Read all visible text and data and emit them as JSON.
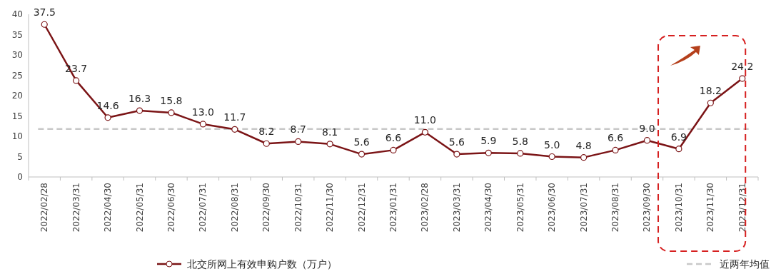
{
  "chart_data": {
    "type": "line",
    "categories": [
      "2022/02/28",
      "2022/03/31",
      "2022/04/30",
      "2022/05/31",
      "2022/06/30",
      "2022/07/31",
      "2022/08/31",
      "2022/09/30",
      "2022/10/31",
      "2022/11/30",
      "2022/12/31",
      "2023/01/31",
      "2023/02/28",
      "2023/03/31",
      "2023/04/30",
      "2023/05/31",
      "2023/06/30",
      "2023/07/31",
      "2023/08/31",
      "2023/09/30",
      "2023/10/31",
      "2023/11/30",
      "2023/12/31"
    ],
    "series": [
      {
        "name": "北交所网上有效申购户数（万户）",
        "color": "#7b1416",
        "values": [
          37.5,
          23.7,
          14.6,
          16.3,
          15.8,
          13.0,
          11.7,
          8.2,
          8.7,
          8.1,
          5.6,
          6.6,
          11.0,
          5.6,
          5.9,
          5.8,
          5.0,
          4.8,
          6.6,
          9.0,
          6.9,
          18.2,
          24.2
        ]
      }
    ],
    "ref_lines": [
      {
        "axis": "y",
        "value": 11.8,
        "label": "近两年均值",
        "color": "#c8c8c8",
        "line_style": "dashed"
      }
    ],
    "ylim": [
      0,
      40
    ],
    "yticks": [
      0,
      5,
      10,
      15,
      20,
      25,
      30,
      35,
      40
    ],
    "value_labels": [
      "37.5",
      "23.7",
      "14.6",
      "16.3",
      "15.8",
      "13.0",
      "11.7",
      "8.2",
      "8.7",
      "8.1",
      "5.6",
      "6.6",
      "11.0",
      "5.6",
      "5.9",
      "5.8",
      "5.0",
      "4.8",
      "6.6",
      "9.0",
      "6.9",
      "18.2",
      "24.2"
    ],
    "marker": "circle",
    "line_style": "solid",
    "grid": false,
    "legend": "bottom"
  }
}
